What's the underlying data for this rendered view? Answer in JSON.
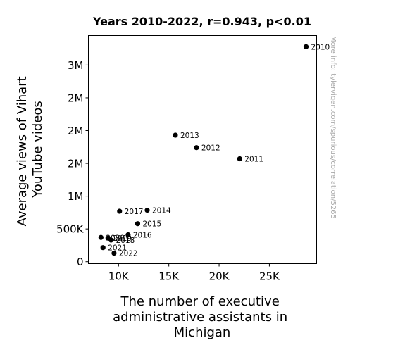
{
  "chart_data": {
    "type": "scatter",
    "title": "Years 2010-2022, r=0.943, p<0.01",
    "xlabel_lines": [
      "The number of executive",
      "administrative assistants in",
      "Michigan"
    ],
    "ylabel_lines": [
      "Average views of Vihart",
      "YouTube videos"
    ],
    "xlim": [
      7000,
      29700
    ],
    "ylim": [
      -30000,
      3450000
    ],
    "x_ticks": [
      {
        "value": 10000,
        "label": "10K"
      },
      {
        "value": 15000,
        "label": "15K"
      },
      {
        "value": 20000,
        "label": "20K"
      },
      {
        "value": 25000,
        "label": "25K"
      }
    ],
    "y_ticks": [
      {
        "value": 0,
        "label": "0"
      },
      {
        "value": 500000,
        "label": "500K"
      },
      {
        "value": 1000000,
        "label": "1M"
      },
      {
        "value": 1500000,
        "label": "2M"
      },
      {
        "value": 2000000,
        "label": "2M"
      },
      {
        "value": 2500000,
        "label": "2M"
      },
      {
        "value": 3000000,
        "label": "3M"
      }
    ],
    "points": [
      {
        "label": "2010",
        "x": 28650,
        "y": 3280000
      },
      {
        "label": "2011",
        "x": 22050,
        "y": 1570000
      },
      {
        "label": "2012",
        "x": 17750,
        "y": 1740000
      },
      {
        "label": "2013",
        "x": 15650,
        "y": 1930000
      },
      {
        "label": "2014",
        "x": 12850,
        "y": 785000
      },
      {
        "label": "2015",
        "x": 11900,
        "y": 580000
      },
      {
        "label": "2016",
        "x": 10950,
        "y": 410000
      },
      {
        "label": "2017",
        "x": 10100,
        "y": 770000
      },
      {
        "label": "2018",
        "x": 9250,
        "y": 330000
      },
      {
        "label": "2019",
        "x": 8950,
        "y": 360000
      },
      {
        "label": "2020",
        "x": 8250,
        "y": 370000
      },
      {
        "label": "2021",
        "x": 8450,
        "y": 215000
      },
      {
        "label": "2022",
        "x": 9550,
        "y": 130000
      }
    ]
  },
  "watermark": "More info: tylervigen.com/spurious/correlation/5265"
}
